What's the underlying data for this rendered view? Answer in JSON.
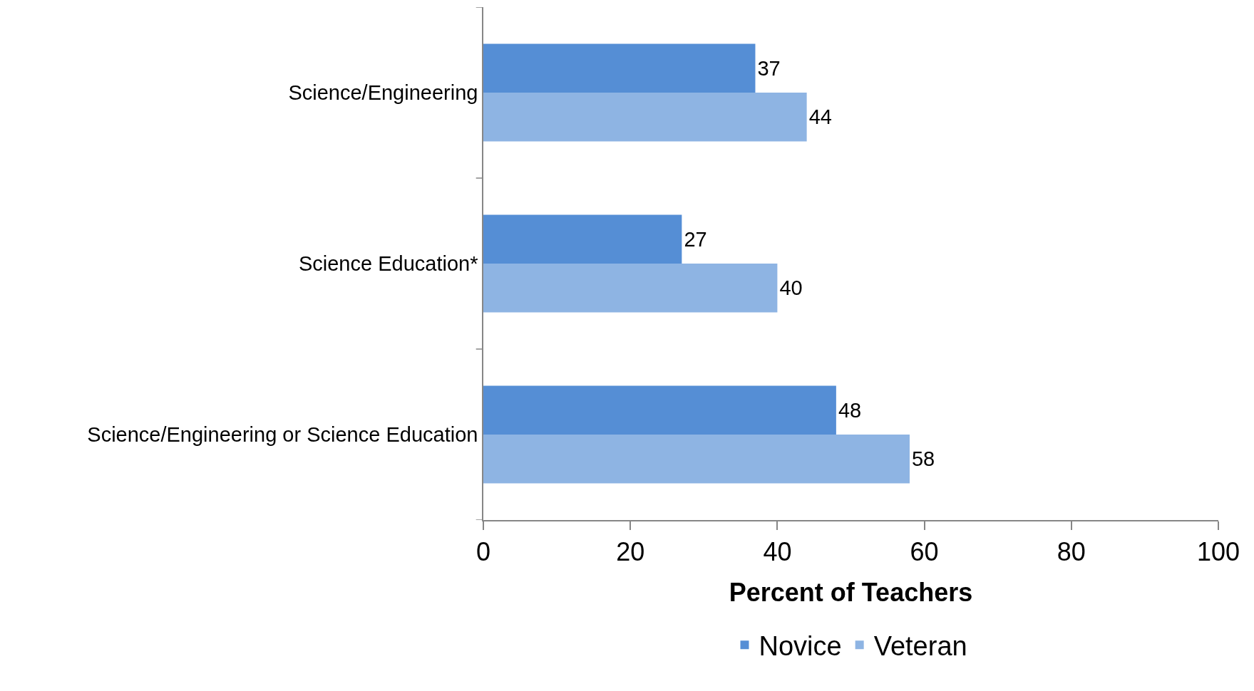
{
  "chart_data": {
    "type": "bar",
    "orientation": "horizontal",
    "categories": [
      "Science/Engineering",
      "Science Education*",
      "Science/Engineering or Science Education"
    ],
    "series": [
      {
        "name": "Novice",
        "color": "#558ed5",
        "values": [
          37,
          27,
          48
        ]
      },
      {
        "name": "Veteran",
        "color": "#8eb4e3",
        "values": [
          44,
          40,
          58
        ]
      }
    ],
    "xlabel": "Percent of Teachers",
    "xlim": [
      0,
      100
    ],
    "xticks": [
      0,
      20,
      40,
      60,
      80,
      100
    ],
    "data_labels": true,
    "grid": false,
    "legend": "bottom"
  }
}
